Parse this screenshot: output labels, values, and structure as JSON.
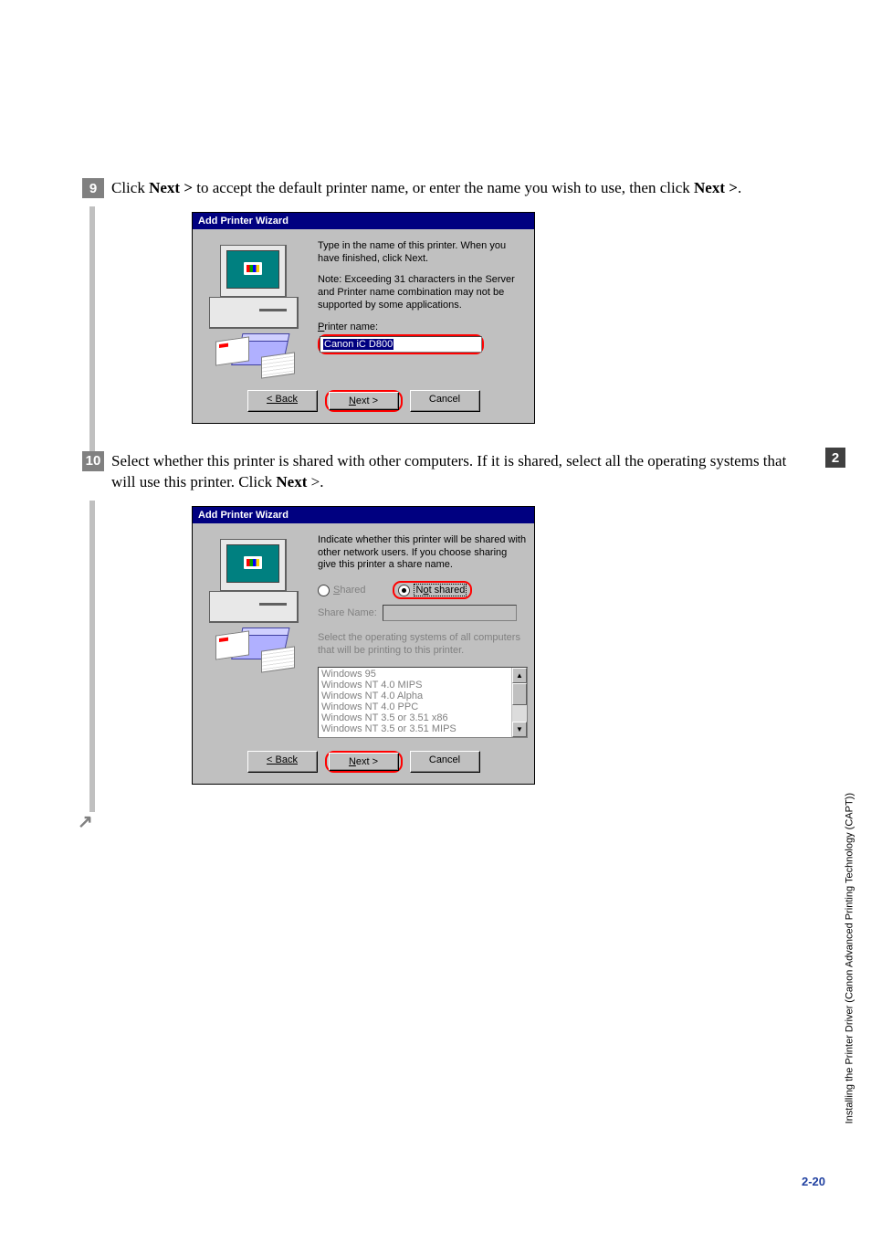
{
  "step9": {
    "number": "9",
    "text_parts": [
      "Click ",
      "Next >",
      " to accept the default printer name, or enter the name you wish to use, then click ",
      "Next >",
      "."
    ]
  },
  "dialog1": {
    "title": "Add Printer Wizard",
    "intro": "Type in the name of this printer.  When you have finished, click Next.",
    "note": "Note:  Exceeding 31 characters in the Server and Printer name combination may not be supported by some applications.",
    "printer_name_label_pre": "P",
    "printer_name_label_post": "rinter name:",
    "printer_name_value": "Canon iC D800",
    "btn_back": "< Back",
    "btn_next_u": "N",
    "btn_next_rest": "ext >",
    "btn_cancel": "Cancel"
  },
  "step10": {
    "number": "10",
    "text_parts": [
      "Select whether this printer is shared with other computers. If it is shared, select all the operating systems that will use this printer. Click ",
      "Next",
      " >."
    ]
  },
  "dialog2": {
    "title": "Add Printer Wizard",
    "intro": "Indicate whether this printer will be shared with other network users.  If you choose sharing give this printer a share name.",
    "shared_u": "S",
    "shared_rest": "hared",
    "not_shared_pre": "N",
    "not_shared_u": "o",
    "not_shared_rest": "t shared",
    "share_name_label": "Share Name:",
    "select_os_text": "Select the operating systems of all computers that will be printing to this printer.",
    "os_list": [
      "Windows 95",
      "Windows NT 4.0 MIPS",
      "Windows NT 4.0 Alpha",
      "Windows NT 4.0 PPC",
      "Windows NT 3.5 or 3.51 x86",
      "Windows NT 3.5 or 3.51 MIPS"
    ],
    "btn_back": "< Back",
    "btn_next_u": "N",
    "btn_next_rest": "ext >",
    "btn_cancel": "Cancel"
  },
  "sidebar": {
    "chapter": "2",
    "label": "Installing the Printer Driver (Canon Advanced Printing Technology (CAPT))"
  },
  "page_number": "2-20"
}
